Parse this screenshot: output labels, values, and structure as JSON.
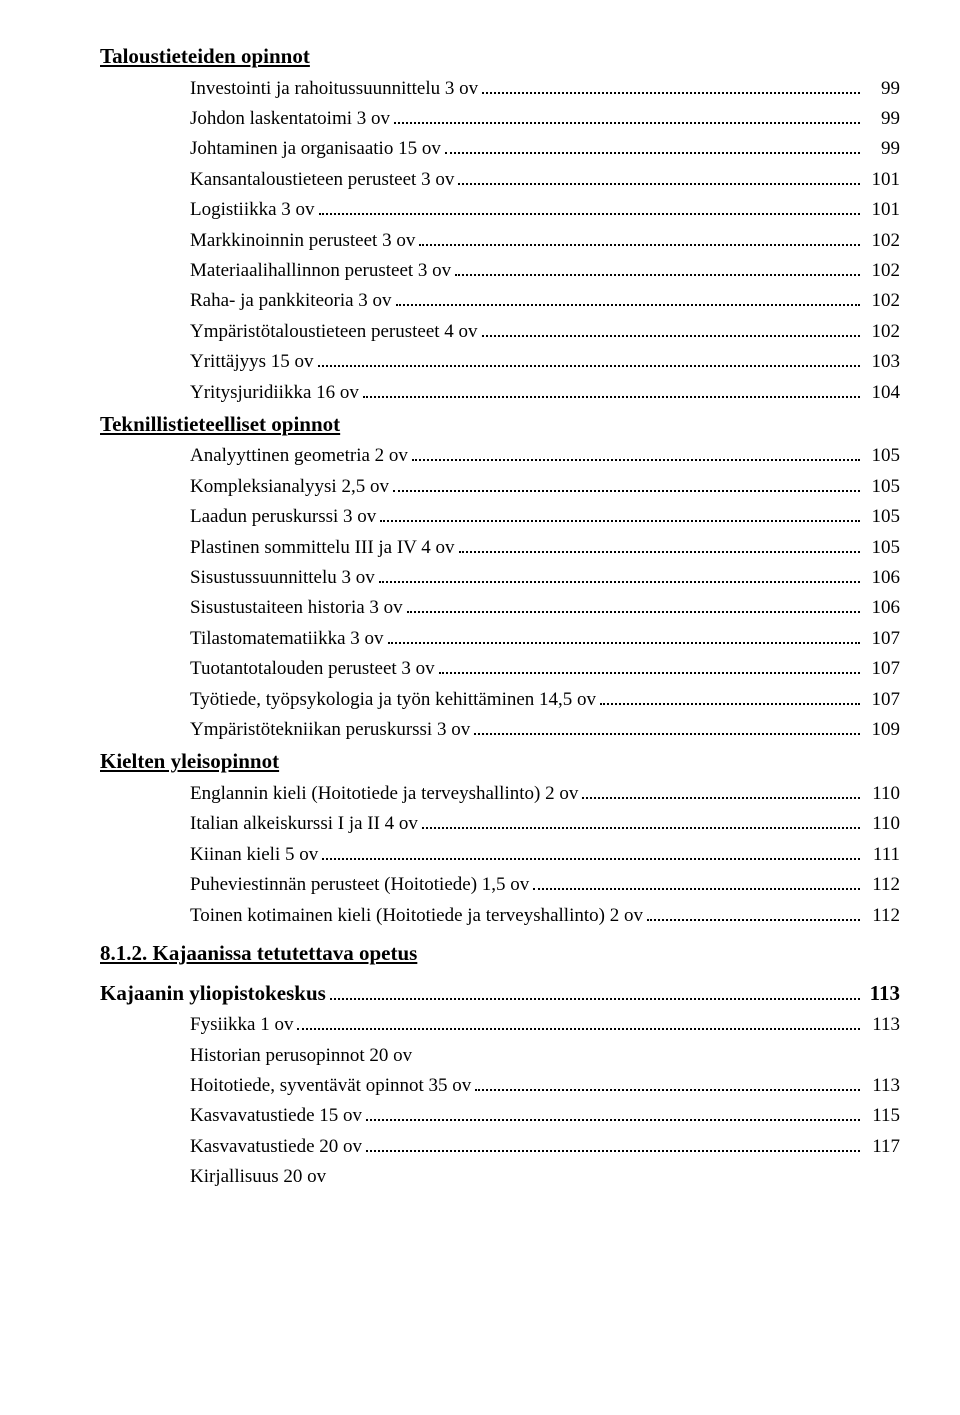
{
  "sections": {
    "talous": {
      "title": "Taloustieteiden opinnot",
      "items": [
        {
          "label": "Investointi ja rahoitussuunnittelu 3 ov",
          "page": "99"
        },
        {
          "label": "Johdon laskentatoimi 3 ov",
          "page": "99"
        },
        {
          "label": "Johtaminen ja organisaatio 15 ov",
          "page": "99"
        },
        {
          "label": "Kansantaloustieteen perusteet 3 ov",
          "page": "101"
        },
        {
          "label": "Logistiikka 3 ov",
          "page": "101"
        },
        {
          "label": "Markkinoinnin perusteet 3 ov",
          "page": "102"
        },
        {
          "label": "Materiaalihallinnon perusteet 3 ov",
          "page": "102"
        },
        {
          "label": "Raha- ja pankkiteoria 3 ov",
          "page": "102"
        },
        {
          "label": "Ympäristötaloustieteen perusteet 4 ov",
          "page": "102"
        },
        {
          "label": "Yrittäjyys 15 ov",
          "page": "103"
        },
        {
          "label": "Yritysjuridiikka 16 ov",
          "page": "104"
        }
      ]
    },
    "teknillis": {
      "title": "Teknillistieteelliset opinnot",
      "items": [
        {
          "label": "Analyyttinen geometria 2 ov",
          "page": "105"
        },
        {
          "label": "Kompleksianalyysi 2,5 ov",
          "page": "105"
        },
        {
          "label": "Laadun peruskurssi 3 ov",
          "page": "105"
        },
        {
          "label": "Plastinen sommittelu III ja IV 4 ov",
          "page": "105"
        },
        {
          "label": "Sisustussuunnittelu 3 ov",
          "page": "106"
        },
        {
          "label": "Sisustustaiteen historia 3 ov",
          "page": "106"
        },
        {
          "label": "Tilastomatematiikka 3 ov",
          "page": "107"
        },
        {
          "label": "Tuotantotalouden perusteet 3 ov",
          "page": "107"
        },
        {
          "label": "Työtiede, työpsykologia ja työn kehittäminen 14,5 ov",
          "page": "107"
        },
        {
          "label": "Ympäristötekniikan peruskurssi 3 ov",
          "page": "109"
        }
      ]
    },
    "kielten": {
      "title": "Kielten yleisopinnot",
      "items": [
        {
          "label": "Englannin kieli (Hoitotiede ja terveyshallinto) 2 ov",
          "page": "110"
        },
        {
          "label": "Italian alkeiskurssi  I  ja II 4 ov",
          "page": "110"
        },
        {
          "label": "Kiinan kieli 5 ov",
          "page": "111"
        },
        {
          "label": "Puheviestinnän perusteet (Hoitotiede) 1,5 ov",
          "page": "112"
        },
        {
          "label": "Toinen kotimainen kieli (Hoitotiede ja terveyshallinto) 2 ov",
          "page": "112"
        }
      ]
    },
    "kajaani_subheading": "8.1.2. Kajaanissa tetutettava opetus",
    "kajaani_center": {
      "label": "Kajaanin yliopistokeskus",
      "page": "113"
    },
    "kajaani_items": [
      {
        "label": "Fysiikka 1 ov",
        "page": "113"
      },
      {
        "label": "Historian perusopinnot 20 ov",
        "page": ""
      },
      {
        "label": "Hoitotiede, syventävät opinnot 35 ov",
        "page": "113"
      },
      {
        "label": "Kasvavatustiede 15 ov",
        "page": "115"
      },
      {
        "label": "Kasvavatustiede 20 ov",
        "page": "117"
      },
      {
        "label": "Kirjallisuus 20 ov",
        "page": ""
      }
    ]
  }
}
